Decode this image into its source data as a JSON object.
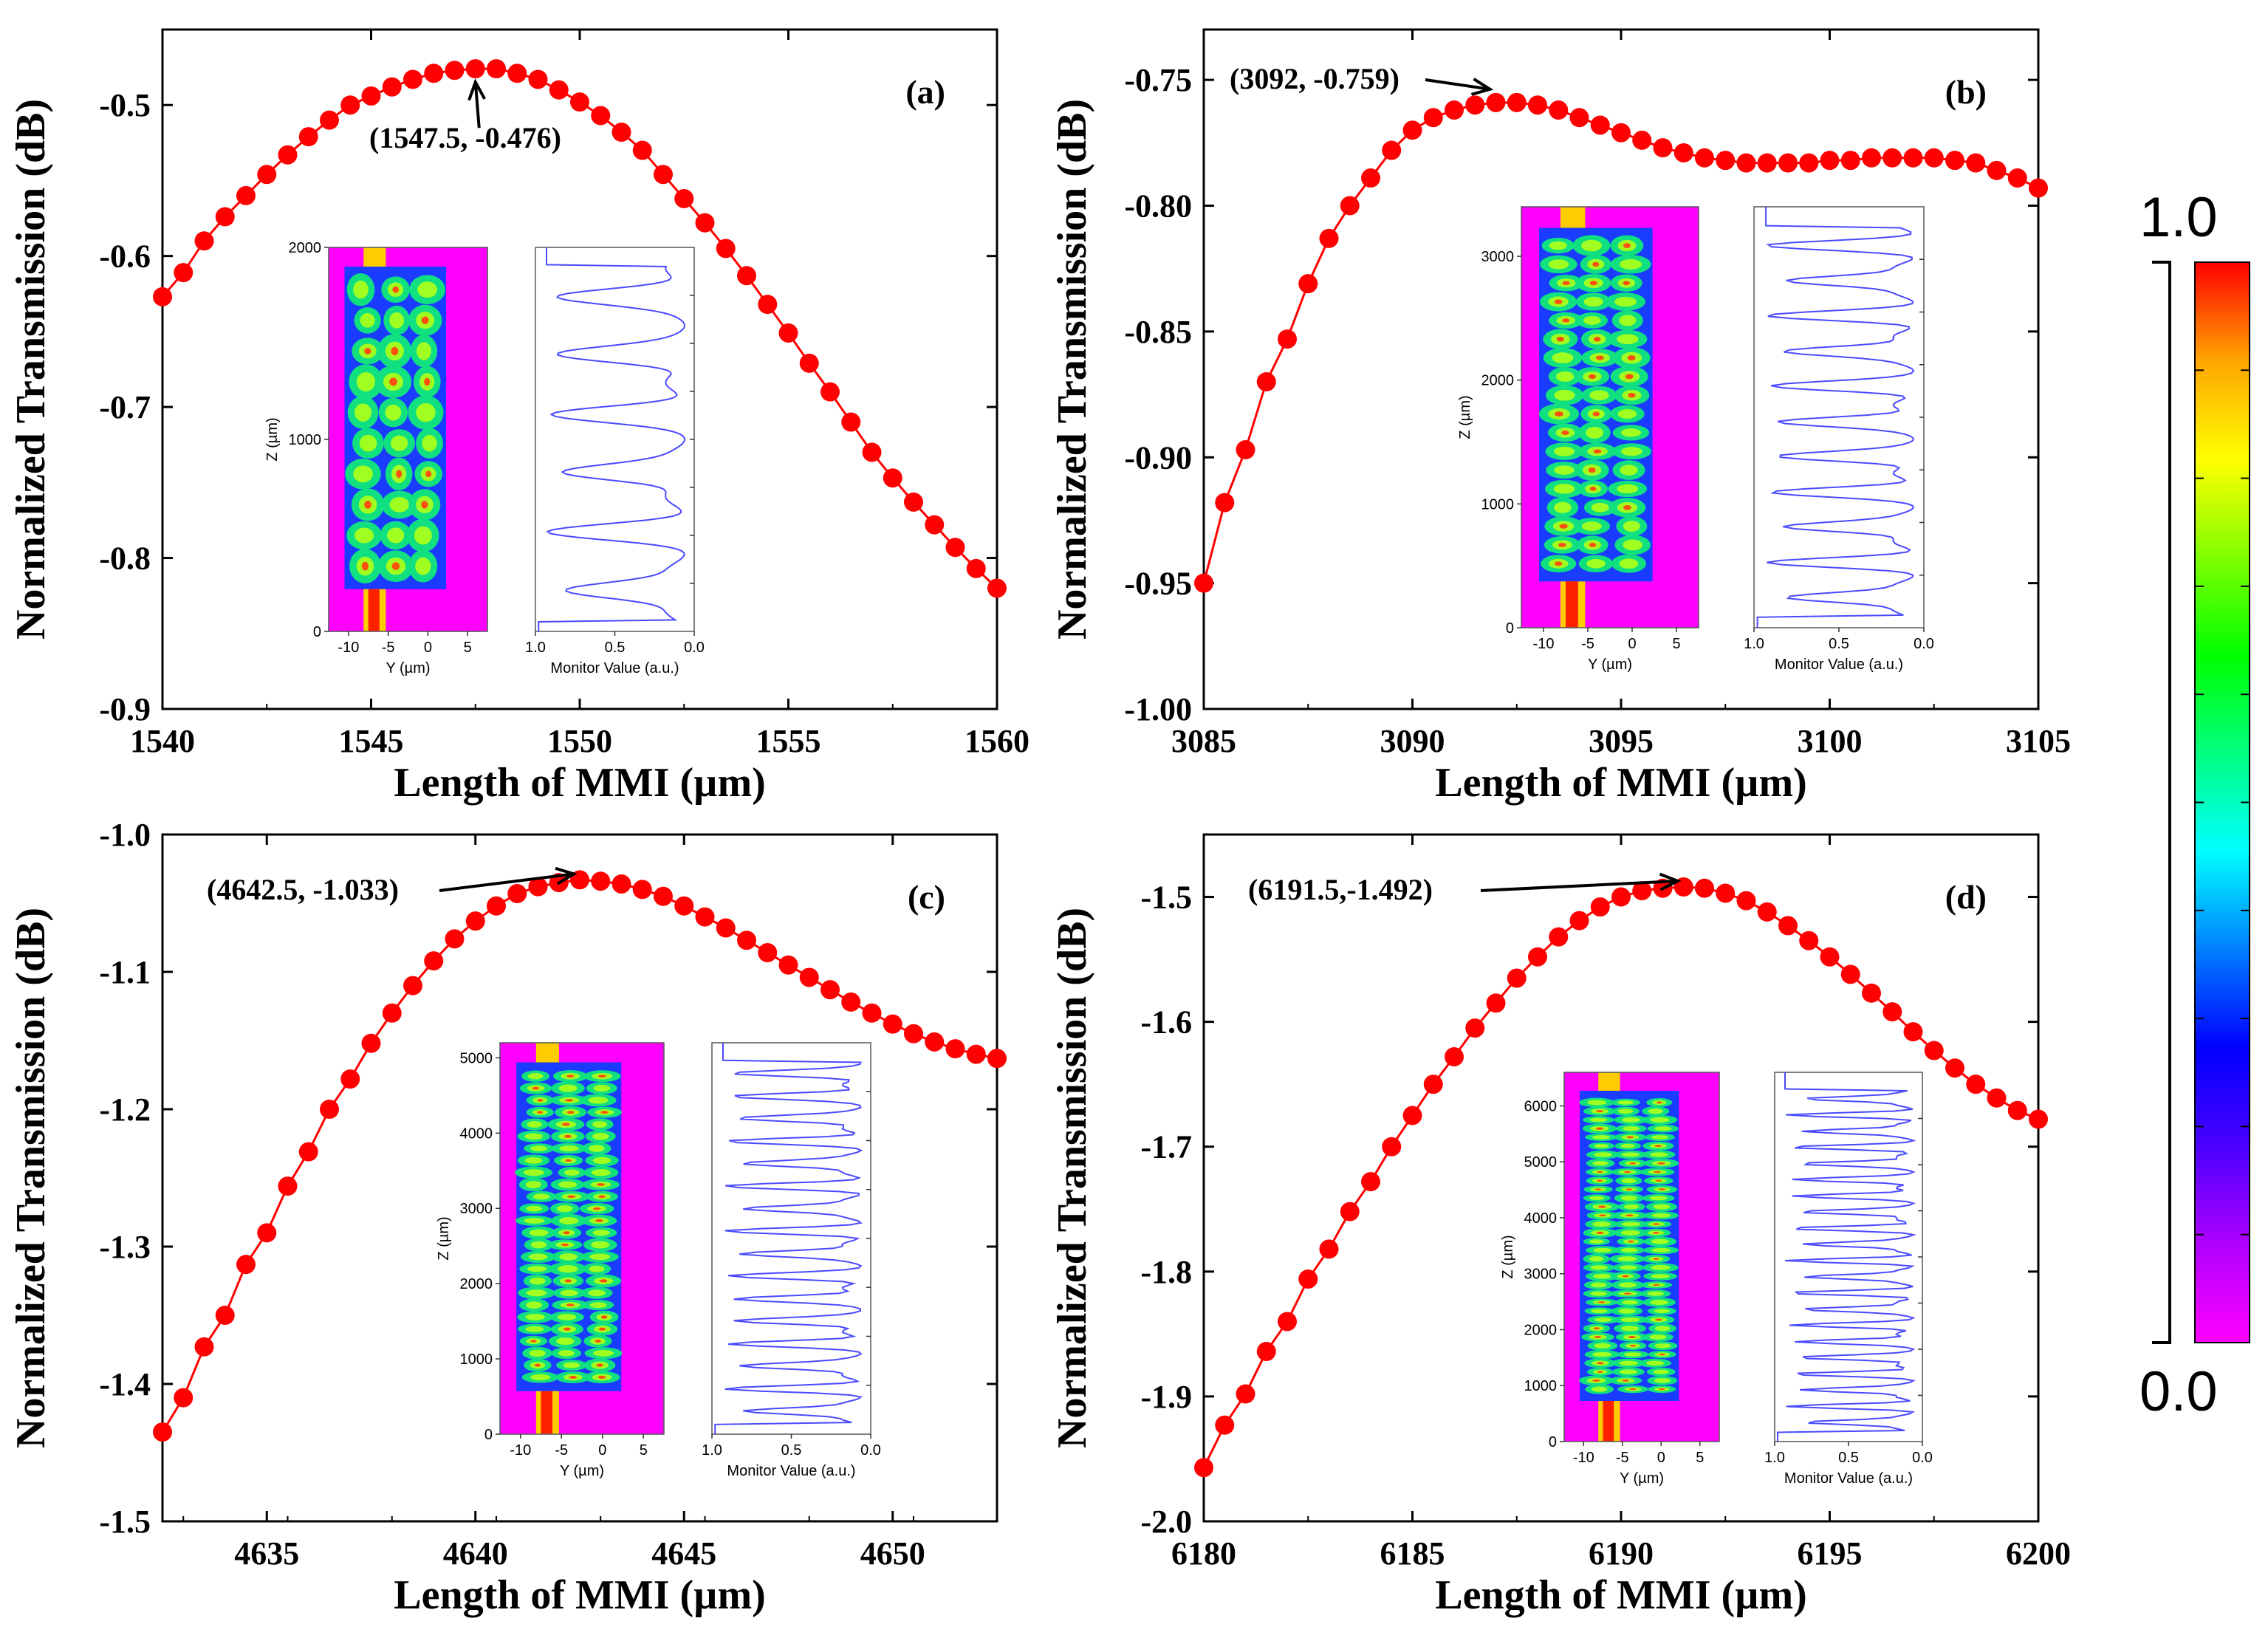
{
  "colorbar": {
    "max_label": "1.0",
    "min_label": "0.0",
    "stops": [
      "#ff00ff",
      "#b000ff",
      "#4b00ff",
      "#0000ff",
      "#007fff",
      "#00ffff",
      "#00ff80",
      "#00ff00",
      "#80ff00",
      "#ffff00",
      "#ffa500",
      "#ff0000"
    ]
  },
  "chart_data": [
    {
      "type": "line",
      "panel_label": "(a)",
      "title": "",
      "xlabel": "Length of MMI (µm)",
      "ylabel": "Normalized Transmission (dB)",
      "xlim": [
        1540,
        1560
      ],
      "ylim": [
        -0.9,
        -0.45
      ],
      "xticks": [
        1540,
        1545,
        1550,
        1555,
        1560
      ],
      "xtick_labels": [
        "1540",
        "1545",
        "1550",
        "1555",
        "1560"
      ],
      "yticks": [
        -0.9,
        -0.8,
        -0.7,
        -0.6,
        -0.5
      ],
      "ytick_labels": [
        "-0.9",
        "-0.8",
        "-0.7",
        "-0.6",
        "-0.5"
      ],
      "peak": {
        "x": 1547.5,
        "y": -0.476
      },
      "annotation": "(1547.5, -0.476)",
      "series": [
        {
          "name": "Transmission",
          "color": "#ff0000",
          "x": [
            1540,
            1540.5,
            1541,
            1541.5,
            1542,
            1542.5,
            1543,
            1543.5,
            1544,
            1544.5,
            1545,
            1545.5,
            1546,
            1546.5,
            1547,
            1547.5,
            1548,
            1548.5,
            1549,
            1549.5,
            1550,
            1550.5,
            1551,
            1551.5,
            1552,
            1552.5,
            1553,
            1553.5,
            1554,
            1554.5,
            1555,
            1555.5,
            1556,
            1556.5,
            1557,
            1557.5,
            1558,
            1558.5,
            1559,
            1559.5,
            1560
          ],
          "y": [
            -0.627,
            -0.611,
            -0.59,
            -0.574,
            -0.56,
            -0.546,
            -0.533,
            -0.521,
            -0.51,
            -0.5,
            -0.494,
            -0.488,
            -0.483,
            -0.479,
            -0.477,
            -0.476,
            -0.476,
            -0.479,
            -0.483,
            -0.49,
            -0.498,
            -0.507,
            -0.518,
            -0.53,
            -0.546,
            -0.562,
            -0.578,
            -0.595,
            -0.613,
            -0.632,
            -0.651,
            -0.671,
            -0.69,
            -0.71,
            -0.73,
            -0.747,
            -0.763,
            -0.778,
            -0.793,
            -0.807,
            -0.82
          ]
        }
      ],
      "inset": {
        "map": {
          "ylabel": "Z (µm)",
          "xlabel": "Y (µm)",
          "yticks": [
            "2000",
            "1000",
            "0"
          ],
          "xticks": [
            "-10",
            "-5",
            "0",
            "5"
          ],
          "zmax": 2000
        },
        "monitor": {
          "xlabel": "Monitor Value (a.u.)",
          "xticks": [
            "1.0",
            "0.5",
            "0.0"
          ]
        }
      }
    },
    {
      "type": "line",
      "panel_label": "(b)",
      "title": "",
      "xlabel": "Length of MMI (µm)",
      "ylabel": "Normalized Transmission (dB)",
      "xlim": [
        3085,
        3105
      ],
      "ylim": [
        -1.0,
        -0.73
      ],
      "xticks": [
        3085,
        3090,
        3095,
        3100,
        3105
      ],
      "xtick_labels": [
        "3085",
        "3090",
        "3095",
        "3100",
        "3105"
      ],
      "yticks": [
        -1.0,
        -0.95,
        -0.9,
        -0.85,
        -0.8,
        -0.75
      ],
      "ytick_labels": [
        "-1.00",
        "-0.95",
        "-0.90",
        "-0.85",
        "-0.80",
        "-0.75"
      ],
      "peak": {
        "x": 3092,
        "y": -0.759
      },
      "annotation": "(3092, -0.759)",
      "series": [
        {
          "name": "Transmission",
          "color": "#ff0000",
          "x": [
            3085,
            3085.5,
            3086,
            3086.5,
            3087,
            3087.5,
            3088,
            3088.5,
            3089,
            3089.5,
            3090,
            3090.5,
            3091,
            3091.5,
            3092,
            3092.5,
            3093,
            3093.5,
            3094,
            3094.5,
            3095,
            3095.5,
            3096,
            3096.5,
            3097,
            3097.5,
            3098,
            3098.5,
            3099,
            3099.5,
            3100,
            3100.5,
            3101,
            3101.5,
            3102,
            3102.5,
            3103,
            3103.5,
            3104,
            3104.5,
            3105
          ],
          "y": [
            -0.95,
            -0.918,
            -0.897,
            -0.87,
            -0.853,
            -0.831,
            -0.813,
            -0.8,
            -0.789,
            -0.778,
            -0.77,
            -0.765,
            -0.762,
            -0.76,
            -0.759,
            -0.759,
            -0.76,
            -0.762,
            -0.765,
            -0.768,
            -0.771,
            -0.774,
            -0.777,
            -0.779,
            -0.781,
            -0.782,
            -0.783,
            -0.783,
            -0.783,
            -0.783,
            -0.782,
            -0.782,
            -0.781,
            -0.781,
            -0.781,
            -0.781,
            -0.782,
            -0.783,
            -0.786,
            -0.789,
            -0.793
          ]
        }
      ],
      "inset": {
        "map": {
          "ylabel": "Z (µm)",
          "xlabel": "Y (µm)",
          "yticks": [
            "3000",
            "2000",
            "1000",
            "0"
          ],
          "xticks": [
            "-10",
            "-5",
            "0",
            "5"
          ],
          "zmax": 3400
        },
        "monitor": {
          "xlabel": "Monitor Value (a.u.)",
          "xticks": [
            "1.0",
            "0.5",
            "0.0"
          ]
        }
      }
    },
    {
      "type": "line",
      "panel_label": "(c)",
      "title": "",
      "xlabel": "Length of MMI (µm)",
      "ylabel": "Normalized Transmission (dB)",
      "xlim": [
        4632.5,
        4652.5
      ],
      "ylim": [
        -1.5,
        -1.0
      ],
      "xticks": [
        4635,
        4640,
        4645,
        4650
      ],
      "xtick_labels": [
        "4635",
        "4640",
        "4645",
        "4650"
      ],
      "yticks": [
        -1.5,
        -1.4,
        -1.3,
        -1.2,
        -1.1,
        -1.0
      ],
      "ytick_labels": [
        "-1.5",
        "-1.4",
        "-1.3",
        "-1.2",
        "-1.1",
        "-1.0"
      ],
      "peak": {
        "x": 4642.5,
        "y": -1.033
      },
      "annotation": "(4642.5, -1.033)",
      "series": [
        {
          "name": "Transmission",
          "color": "#ff0000",
          "x": [
            4632.5,
            4633,
            4633.5,
            4634,
            4634.5,
            4635,
            4635.5,
            4636,
            4636.5,
            4637,
            4637.5,
            4638,
            4638.5,
            4639,
            4639.5,
            4640,
            4640.5,
            4641,
            4641.5,
            4642,
            4642.5,
            4643,
            4643.5,
            4644,
            4644.5,
            4645,
            4645.5,
            4646,
            4646.5,
            4647,
            4647.5,
            4648,
            4648.5,
            4649,
            4649.5,
            4650,
            4650.5,
            4651,
            4651.5,
            4652,
            4652.5
          ],
          "y": [
            -1.435,
            -1.41,
            -1.373,
            -1.35,
            -1.313,
            -1.29,
            -1.256,
            -1.231,
            -1.2,
            -1.178,
            -1.152,
            -1.13,
            -1.11,
            -1.092,
            -1.076,
            -1.063,
            -1.052,
            -1.043,
            -1.038,
            -1.035,
            -1.033,
            -1.034,
            -1.036,
            -1.04,
            -1.045,
            -1.052,
            -1.06,
            -1.068,
            -1.077,
            -1.086,
            -1.095,
            -1.104,
            -1.113,
            -1.122,
            -1.13,
            -1.138,
            -1.145,
            -1.151,
            -1.156,
            -1.16,
            -1.163
          ]
        }
      ],
      "inset": {
        "map": {
          "ylabel": "Z (µm)",
          "xlabel": "Y (µm)",
          "yticks": [
            "5000",
            "4000",
            "3000",
            "2000",
            "1000",
            "0"
          ],
          "xticks": [
            "-10",
            "-5",
            "0",
            "5"
          ],
          "zmax": 5200
        },
        "monitor": {
          "xlabel": "Monitor Value (a.u.)",
          "xticks": [
            "1.0",
            "0.5",
            "0.0"
          ]
        }
      }
    },
    {
      "type": "line",
      "panel_label": "(d)",
      "title": "",
      "xlabel": "Length of MMI (µm)",
      "ylabel": "Normalized Transmission (dB)",
      "xlim": [
        6180,
        6200
      ],
      "ylim": [
        -2.0,
        -1.45
      ],
      "xticks": [
        6180,
        6185,
        6190,
        6195,
        6200
      ],
      "xtick_labels": [
        "6180",
        "6185",
        "6190",
        "6195",
        "6200"
      ],
      "yticks": [
        -2.0,
        -1.9,
        -1.8,
        -1.7,
        -1.6,
        -1.5
      ],
      "ytick_labels": [
        "-2.0",
        "-1.9",
        "-1.8",
        "-1.7",
        "-1.6",
        "-1.5"
      ],
      "peak": {
        "x": 6191.5,
        "y": -1.492
      },
      "annotation": "(6191.5,-1.492)",
      "series": [
        {
          "name": "Transmission",
          "color": "#ff0000",
          "x": [
            6180,
            6180.5,
            6181,
            6181.5,
            6182,
            6182.5,
            6183,
            6183.5,
            6184,
            6184.5,
            6185,
            6185.5,
            6186,
            6186.5,
            6187,
            6187.5,
            6188,
            6188.5,
            6189,
            6189.5,
            6190,
            6190.5,
            6191,
            6191.5,
            6192,
            6192.5,
            6193,
            6193.5,
            6194,
            6194.5,
            6195,
            6195.5,
            6196,
            6196.5,
            6197,
            6197.5,
            6198,
            6198.5,
            6199,
            6199.5,
            6200
          ],
          "y": [
            -1.957,
            -1.923,
            -1.898,
            -1.864,
            -1.84,
            -1.806,
            -1.782,
            -1.752,
            -1.728,
            -1.7,
            -1.675,
            -1.65,
            -1.628,
            -1.605,
            -1.585,
            -1.565,
            -1.548,
            -1.532,
            -1.519,
            -1.508,
            -1.5,
            -1.495,
            -1.493,
            -1.492,
            -1.493,
            -1.497,
            -1.503,
            -1.512,
            -1.523,
            -1.535,
            -1.548,
            -1.562,
            -1.577,
            -1.592,
            -1.608,
            -1.623,
            -1.637,
            -1.65,
            -1.661,
            -1.671,
            -1.678
          ]
        }
      ],
      "inset": {
        "map": {
          "ylabel": "Z (µm)",
          "xlabel": "Y (µm)",
          "yticks": [
            "6000",
            "5000",
            "4000",
            "3000",
            "2000",
            "1000",
            "0"
          ],
          "xticks": [
            "-10",
            "-5",
            "0",
            "5"
          ],
          "zmax": 6600
        },
        "monitor": {
          "xlabel": "Monitor Value (a.u.)",
          "xticks": [
            "1.0",
            "0.5",
            "0.0"
          ]
        }
      }
    }
  ]
}
